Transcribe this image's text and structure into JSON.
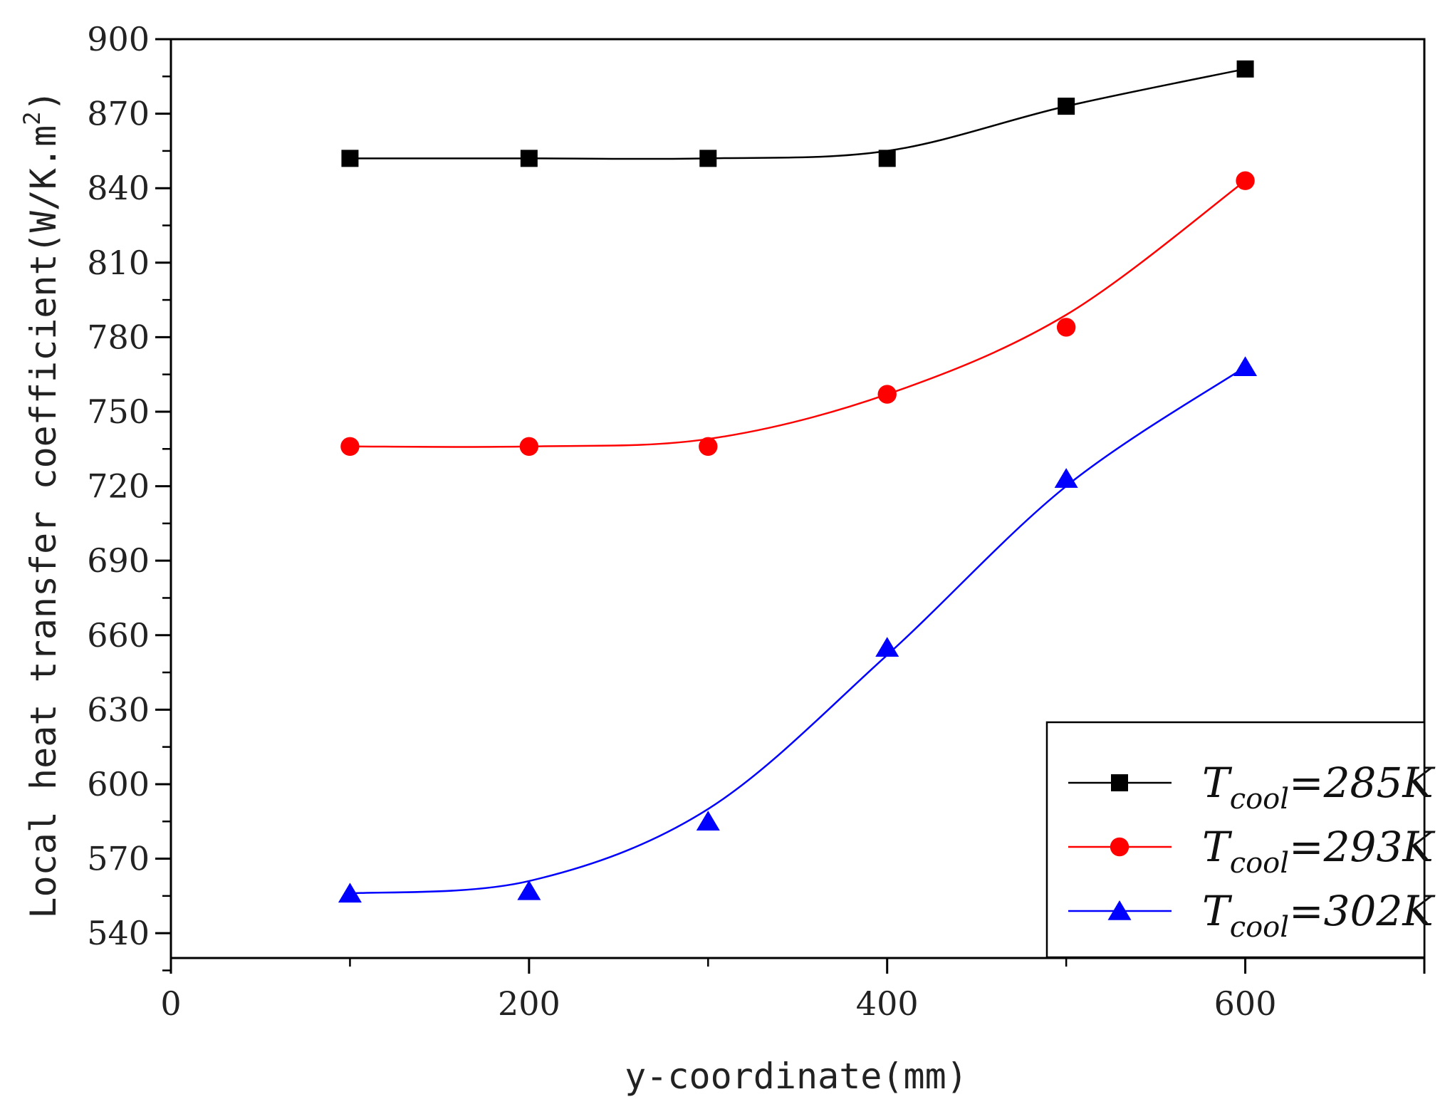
{
  "chart_data": {
    "type": "line",
    "title": "",
    "xlabel": "y-coordinate(mm)",
    "ylabel": "Local heat transfer coefficient(W/K.m",
    "ylabel_sup": "2",
    "ylabel_close": ")",
    "xlim": [
      0,
      700
    ],
    "ylim": [
      530,
      900
    ],
    "x_ticks": [
      0,
      200,
      400,
      600
    ],
    "y_ticks": [
      540,
      570,
      600,
      630,
      660,
      690,
      720,
      750,
      780,
      810,
      840,
      870,
      900
    ],
    "x": [
      100,
      200,
      300,
      400,
      500,
      600
    ],
    "grid": false,
    "legend_position": "bottom-right",
    "series": [
      {
        "name_base": "T",
        "name_sub": "cool",
        "name_rest": "=285K",
        "marker": "square",
        "color": "#000000",
        "values": [
          852,
          852,
          852,
          852,
          873,
          888
        ],
        "smooth": [
          852,
          852,
          852,
          855,
          873,
          888
        ]
      },
      {
        "name_base": "T",
        "name_sub": "cool",
        "name_rest": "=293K",
        "marker": "circle",
        "color": "#ff0000",
        "values": [
          736,
          736,
          736,
          757,
          784,
          843
        ],
        "smooth": [
          736,
          736,
          739,
          757,
          789,
          843
        ]
      },
      {
        "name_base": "T",
        "name_sub": "cool",
        "name_rest": "=302K",
        "marker": "triangle",
        "color": "#0000ff",
        "values": [
          556,
          557,
          585,
          655,
          723,
          768
        ],
        "smooth": [
          556,
          561,
          590,
          652,
          720,
          768
        ]
      }
    ]
  }
}
